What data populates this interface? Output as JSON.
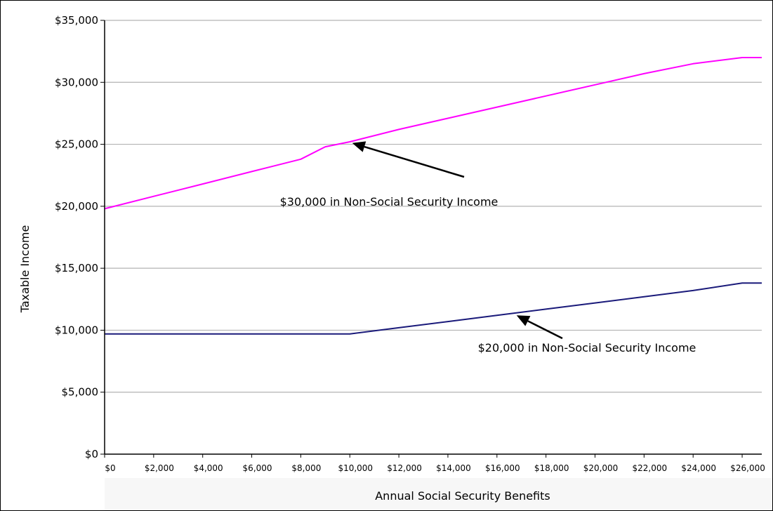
{
  "chart_data": {
    "type": "line",
    "xlabel": "Annual Social Security Benefits",
    "ylabel": "Taxable Income",
    "xlim": [
      0,
      26800
    ],
    "ylim": [
      0,
      35000
    ],
    "grid": true,
    "y_ticks": [
      "$0",
      "$5,000",
      "$10,000",
      "$15,000",
      "$20,000",
      "$25,000",
      "$30,000",
      "$35,000"
    ],
    "y_tick_values": [
      0,
      5000,
      10000,
      15000,
      20000,
      25000,
      30000,
      35000
    ],
    "x_ticks": [
      "$0",
      "$2,000",
      "$4,000",
      "$6,000",
      "$8,000",
      "$10,000",
      "$12,000",
      "$14,000",
      "$16,000",
      "$18,000",
      "$20,000",
      "$22,000",
      "$24,000",
      "$26,000"
    ],
    "x_tick_values": [
      0,
      2000,
      4000,
      6000,
      8000,
      10000,
      12000,
      14000,
      16000,
      18000,
      20000,
      22000,
      24000,
      26000
    ],
    "series": [
      {
        "color": "#ff00ff",
        "x": [
          0,
          2000,
          4000,
          6000,
          8000,
          9000,
          10000,
          12000,
          14000,
          16000,
          18000,
          20000,
          22000,
          24000,
          26000,
          26800
        ],
        "values": [
          19800,
          20800,
          21800,
          22800,
          23800,
          24800,
          25200,
          26200,
          27100,
          28000,
          28900,
          29800,
          30700,
          31500,
          32000,
          32000
        ]
      },
      {
        "color": "#1a1a7a",
        "x": [
          0,
          2000,
          4000,
          6000,
          8000,
          10000,
          12000,
          14000,
          16000,
          18000,
          20000,
          22000,
          24000,
          26000,
          26800
        ],
        "values": [
          9700,
          9700,
          9700,
          9700,
          9700,
          9700,
          10200,
          10700,
          11200,
          11700,
          12200,
          12700,
          13200,
          13800,
          13800
        ]
      }
    ],
    "annotations": [
      {
        "text": "$30,000 in Non-Social Security Income",
        "target_x": 10100,
        "target_y": 25100
      },
      {
        "text": "$20,000 in Non-Social Security Income",
        "target_x": 16800,
        "target_y": 11200
      }
    ]
  }
}
